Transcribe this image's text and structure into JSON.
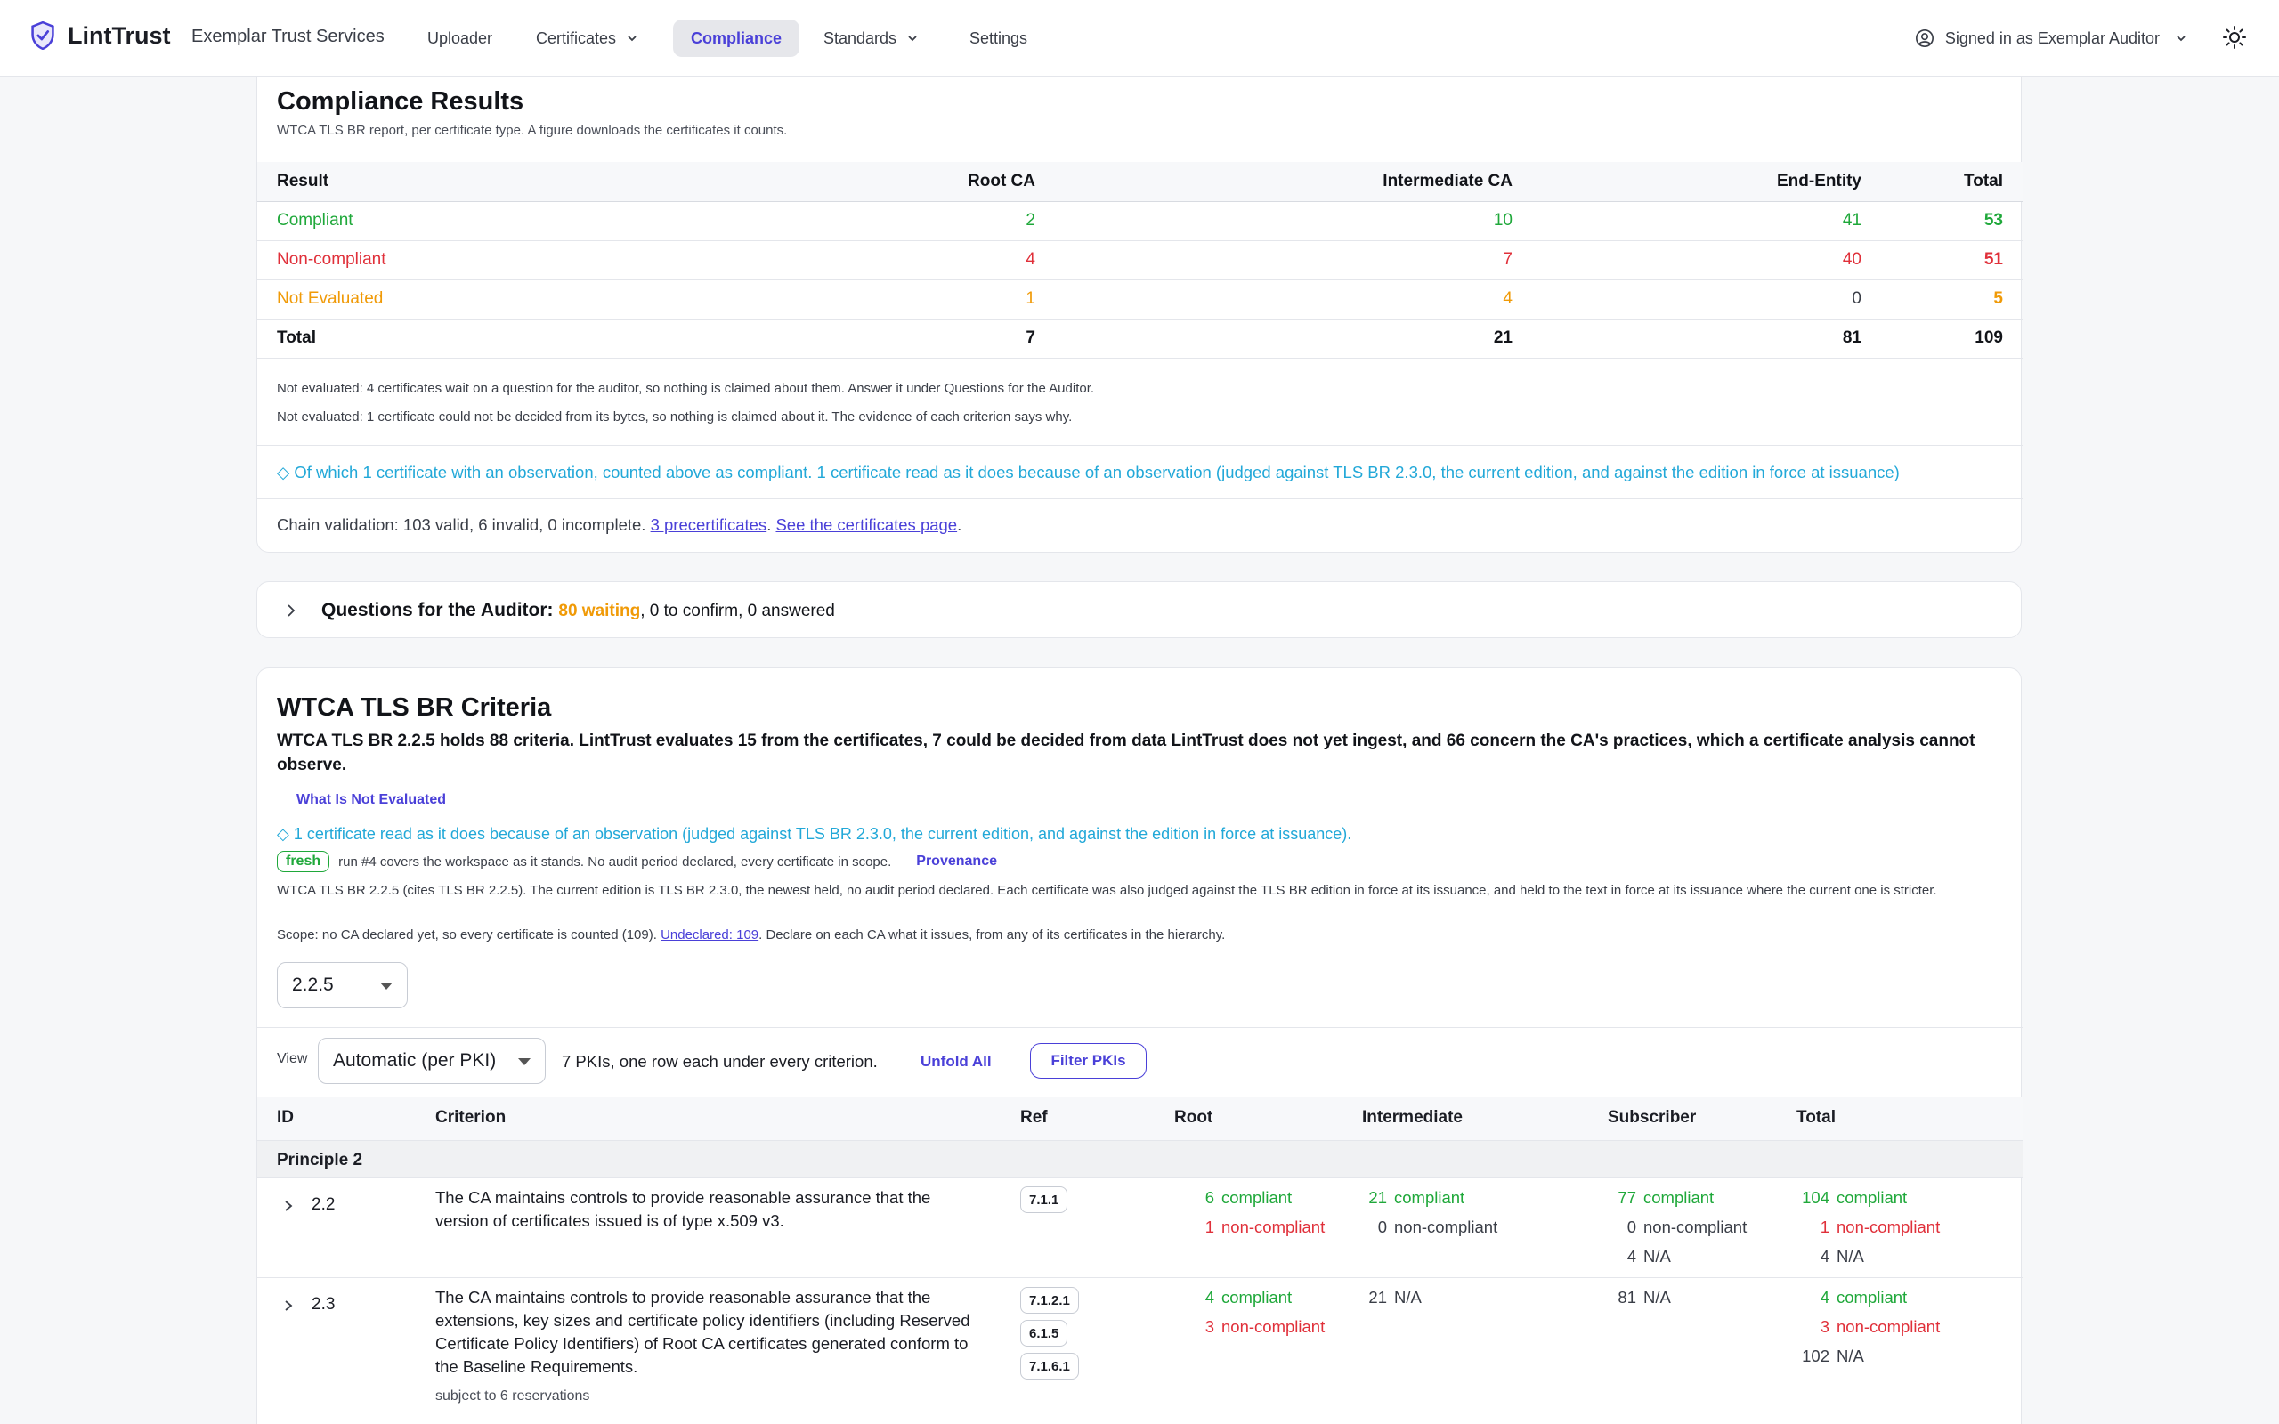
{
  "nav": {
    "brand": "LintTrust",
    "org": "Exemplar Trust Services",
    "items": [
      "Uploader",
      "Certificates",
      "Compliance",
      "Standards",
      "Settings"
    ],
    "active": "Compliance",
    "user": "Signed in as Exemplar Auditor"
  },
  "results": {
    "title": "Compliance Results",
    "subtitle": "WTCA TLS BR report, per certificate type. A figure downloads the certificates it counts.",
    "columns": [
      "Result",
      "Root CA",
      "Intermediate CA",
      "End-Entity",
      "Total"
    ],
    "rows": [
      {
        "label": "Compliant",
        "root": "2",
        "inter": "10",
        "ee": "41",
        "total": "53"
      },
      {
        "label": "Non-compliant",
        "root": "4",
        "inter": "7",
        "ee": "40",
        "total": "51"
      },
      {
        "label": "Not Evaluated",
        "root": "1",
        "inter": "4",
        "ee": "0",
        "total": "5"
      },
      {
        "label": "Total",
        "root": "7",
        "inter": "21",
        "ee": "81",
        "total": "109"
      }
    ],
    "note1": "Not evaluated: 4 certificates wait on a question for the auditor, so nothing is claimed about them. Answer it under Questions for the Auditor.",
    "note2": "Not evaluated: 1 certificate could not be decided from its bytes, so nothing is claimed about it. The evidence of each criterion says why.",
    "observation": "◇ Of which 1 certificate with an observation, counted above as compliant. 1 certificate read as it does because of an observation (judged against TLS BR 2.3.0, the current edition, and against the edition in force at issuance)",
    "chain_prefix": "Chain validation: 103 valid, 6 invalid, 0 incomplete. ",
    "chain_link1": "3 precertificates",
    "chain_link2": "See the certificates page",
    "colors": {
      "compliant": "#1fa83a",
      "noncompliant": "#e0303a",
      "notevaluated": "#f09a07",
      "observation": "#22a8d8"
    }
  },
  "questions": {
    "label": "Questions for the Auditor:",
    "waiting": "80 waiting",
    "rest": ", 0 to confirm, 0 answered"
  },
  "criteria": {
    "title": "WTCA TLS BR Criteria",
    "lead": "WTCA TLS BR 2.2.5 holds 88 criteria. LintTrust evaluates 15 from the certificates, 7 could be decided from data LintTrust does not yet ingest, and 66 concern the CA's practices, which a certificate analysis cannot observe.",
    "not_evaluated_link": "What Is Not Evaluated",
    "observation": "◇ 1 certificate read as it does because of an observation (judged against TLS BR 2.3.0, the current edition, and against the edition in force at issuance).",
    "fresh_badge": "fresh",
    "run_text": "run #4 covers the workspace as it stands.  No audit period declared, every certificate in scope.",
    "provenance": "Provenance",
    "edition_text": "WTCA TLS BR 2.2.5 (cites TLS BR 2.2.5). The current edition is TLS BR 2.3.0, the newest held, no audit period declared. Each certificate was also judged against the TLS BR edition in force at its issuance, and held to the text in force at its issuance where the current one is stricter.",
    "scope_prefix": "Scope: no CA declared yet, so every certificate is counted (109). ",
    "scope_link": "Undeclared: 109",
    "scope_suffix": ". Declare on each CA what it issues, from any of its certificates in the hierarchy.",
    "version_select": "2.2.5",
    "view_label": "View",
    "view_select": "Automatic (per PKI)",
    "view_note": "7 PKIs, one row each under every criterion.",
    "unfold_all": "Unfold All",
    "filter_pkis": "Filter PKIs",
    "columns": [
      "ID",
      "Criterion",
      "Ref",
      "Root",
      "Intermediate",
      "Subscriber",
      "Total"
    ],
    "principle": "Principle 2",
    "rows": [
      {
        "id": "2.2",
        "text": "The CA maintains controls to provide reasonable assurance that the version of certificates issued is of type x.509 v3.",
        "note": "",
        "refs": [
          "7.1.1"
        ],
        "root": [
          {
            "n": "6",
            "t": "compliant",
            "c": "green"
          },
          {
            "n": "1",
            "t": "non-compliant",
            "c": "red"
          }
        ],
        "intermediate": [
          {
            "n": "21",
            "t": "compliant",
            "c": "green"
          },
          {
            "n": "0",
            "t": "non-compliant",
            "c": "gray"
          }
        ],
        "subscriber": [
          {
            "n": "77",
            "t": "compliant",
            "c": "green"
          },
          {
            "n": "0",
            "t": "non-compliant",
            "c": "gray"
          },
          {
            "n": "4",
            "t": "N/A",
            "c": "gray"
          }
        ],
        "total": [
          {
            "n": "104",
            "t": "compliant",
            "c": "green"
          },
          {
            "n": "1",
            "t": "non-compliant",
            "c": "red"
          },
          {
            "n": "4",
            "t": "N/A",
            "c": "gray"
          }
        ]
      },
      {
        "id": "2.3",
        "text": "The CA maintains controls to provide reasonable assurance that the extensions, key sizes and certificate policy identifiers (including Reserved Certificate Policy Identifiers) of Root CA certificates generated conform to the Baseline Requirements.",
        "note": "subject to 6 reservations",
        "refs": [
          "7.1.2.1",
          "6.1.5",
          "7.1.6.1"
        ],
        "root": [
          {
            "n": "4",
            "t": "compliant",
            "c": "green"
          },
          {
            "n": "3",
            "t": "non-compliant",
            "c": "red"
          }
        ],
        "intermediate": [
          {
            "n": "21",
            "t": "N/A",
            "c": "gray"
          }
        ],
        "subscriber": [
          {
            "n": "81",
            "t": "N/A",
            "c": "gray"
          }
        ],
        "total": [
          {
            "n": "4",
            "t": "compliant",
            "c": "green"
          },
          {
            "n": "3",
            "t": "non-compliant",
            "c": "red"
          },
          {
            "n": "102",
            "t": "N/A",
            "c": "gray"
          }
        ]
      }
    ]
  }
}
